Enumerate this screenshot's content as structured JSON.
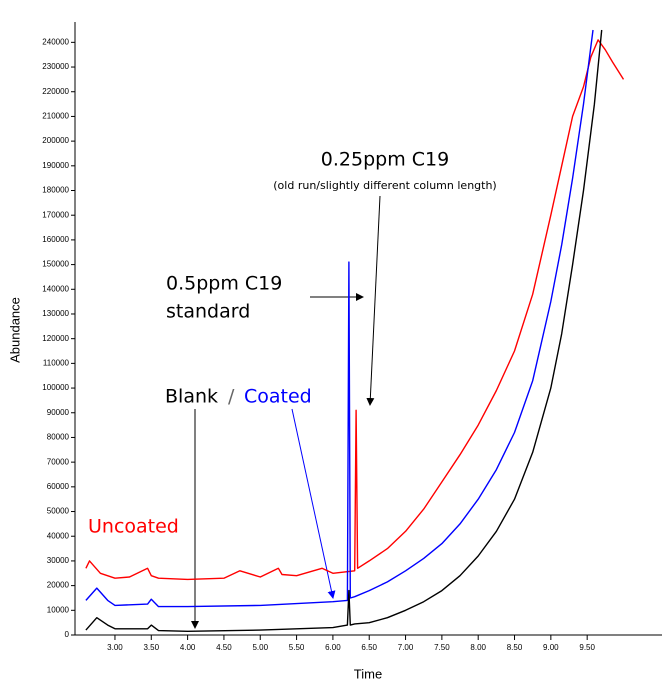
{
  "chart_data": {
    "type": "line",
    "y_label": "Abundance",
    "x_label": "Time",
    "xlim": [
      2.45,
      10.53
    ],
    "ylim": [
      0,
      245000
    ],
    "xticks": [
      {
        "value": 3,
        "label": "3.00"
      },
      {
        "value": 3.5,
        "label": "3.50"
      },
      {
        "value": 4,
        "label": "4.00"
      },
      {
        "value": 4.5,
        "label": "4.50"
      },
      {
        "value": 5,
        "label": "5.00"
      },
      {
        "value": 5.5,
        "label": "5.50"
      },
      {
        "value": 6,
        "label": "6.00"
      },
      {
        "value": 6.5,
        "label": "6.50"
      },
      {
        "value": 7,
        "label": "7.00"
      },
      {
        "value": 7.5,
        "label": "7.50"
      },
      {
        "value": 8,
        "label": "8.00"
      },
      {
        "value": 8.5,
        "label": "8.50"
      },
      {
        "value": 9,
        "label": "9.00"
      },
      {
        "value": 9.5,
        "label": "9.50"
      }
    ],
    "yticks": [
      0,
      10000,
      20000,
      30000,
      40000,
      50000,
      60000,
      70000,
      80000,
      90000,
      100000,
      110000,
      120000,
      130000,
      140000,
      150000,
      160000,
      170000,
      180000,
      190000,
      200000,
      210000,
      220000,
      230000,
      240000
    ],
    "series": [
      {
        "name": "Uncoated",
        "color": "#ff0000",
        "x": [
          2.6,
          2.65,
          2.8,
          3.0,
          3.2,
          3.45,
          3.5,
          3.6,
          4.0,
          4.5,
          4.72,
          5.0,
          5.25,
          5.3,
          5.5,
          5.85,
          6.0,
          6.3,
          6.32,
          6.34,
          6.5,
          6.75,
          7.0,
          7.25,
          7.5,
          7.75,
          8.0,
          8.25,
          8.5,
          8.75,
          9.0,
          9.15,
          9.3,
          9.45,
          9.55,
          9.65,
          9.75,
          9.85,
          10.0
        ],
        "values": [
          27000,
          30000,
          25000,
          23000,
          23500,
          27000,
          24000,
          23000,
          22500,
          23000,
          26000,
          23500,
          27000,
          24500,
          24000,
          27000,
          25000,
          26000,
          91000,
          27000,
          30000,
          35000,
          42000,
          51000,
          62000,
          73000,
          85000,
          99000,
          115000,
          138000,
          170000,
          190000,
          210000,
          222000,
          234000,
          241000,
          237000,
          232000,
          225000
        ]
      },
      {
        "name": "Coated",
        "color": "#0000ff",
        "x": [
          2.6,
          2.75,
          2.9,
          3.0,
          3.45,
          3.5,
          3.6,
          4.0,
          5.0,
          6.0,
          6.2,
          6.22,
          6.24,
          6.3,
          6.5,
          6.75,
          7.0,
          7.25,
          7.5,
          7.75,
          8.0,
          8.25,
          8.5,
          8.75,
          9.0,
          9.15,
          9.3,
          9.45,
          9.58
        ],
        "values": [
          14000,
          19000,
          14000,
          12000,
          12500,
          14500,
          11500,
          11500,
          12000,
          13500,
          14000,
          151000,
          15000,
          15500,
          18000,
          21500,
          26000,
          31000,
          37000,
          45000,
          55000,
          67000,
          82000,
          103000,
          135000,
          158000,
          185000,
          215000,
          245000
        ]
      },
      {
        "name": "Blank",
        "color": "#000000",
        "x": [
          2.6,
          2.75,
          2.9,
          3.0,
          3.45,
          3.5,
          3.6,
          4.0,
          5.0,
          6.0,
          6.2,
          6.22,
          6.24,
          6.3,
          6.5,
          6.75,
          7.0,
          7.25,
          7.5,
          7.75,
          8.0,
          8.25,
          8.5,
          8.75,
          9.0,
          9.15,
          9.3,
          9.45,
          9.6,
          9.7
        ],
        "values": [
          2000,
          7000,
          4000,
          2500,
          2500,
          4000,
          1800,
          1500,
          2000,
          3000,
          4000,
          18000,
          4000,
          4500,
          5000,
          7000,
          10000,
          13500,
          18000,
          24000,
          32000,
          42000,
          55000,
          74000,
          100000,
          122000,
          150000,
          180000,
          215000,
          245000
        ]
      }
    ],
    "annotations": [
      "0.25ppm C19",
      "(old run/slightly different column length)",
      "0.5ppm C19",
      "standard",
      "/"
    ]
  }
}
